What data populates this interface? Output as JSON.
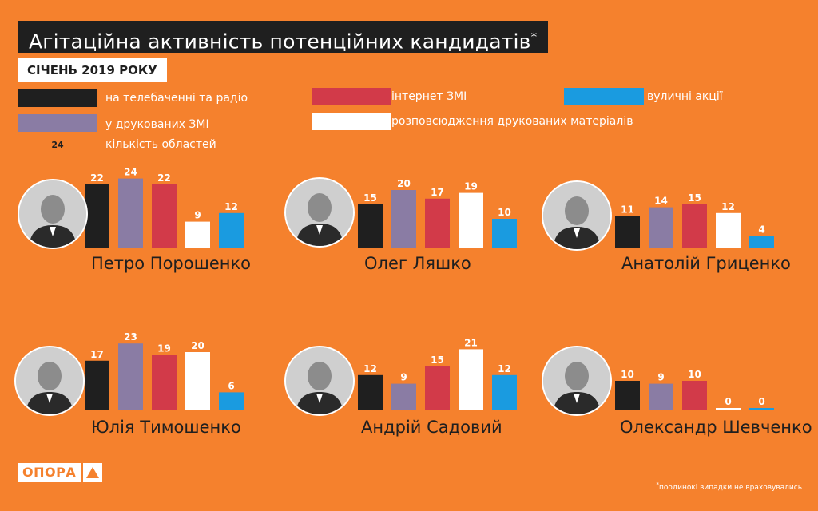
{
  "title": "Агітаційна активність потенційних кандидатів",
  "title_asterisk": "*",
  "subtitle": "СІЧЕНЬ 2019 РОКУ",
  "legend": {
    "tv_radio": {
      "label": "на телебаченні та радіо",
      "color": "#1f1f1f"
    },
    "print": {
      "label": "у друкованих ЗМІ",
      "color": "#8a7ca4"
    },
    "internet": {
      "label": "інтернет ЗМІ",
      "color": "#d23a49"
    },
    "printed_materials": {
      "label": "розповсюдження друкованих матеріалів",
      "color": "#ffffff"
    },
    "street": {
      "label": "вуличні акції",
      "color": "#1a9be0"
    },
    "count_example": "24",
    "count_label": "кількість областей"
  },
  "chart_data": [
    {
      "type": "bar",
      "name": "Петро Порошенко",
      "categories": [
        "на телебаченні та радіо",
        "у друкованих ЗМІ",
        "інтернет ЗМІ",
        "розповсюдження друкованих матеріалів",
        "вуличні акції"
      ],
      "values": [
        22,
        24,
        22,
        9,
        12
      ],
      "ylim": [
        0,
        24
      ]
    },
    {
      "type": "bar",
      "name": "Олег Ляшко",
      "categories": [
        "на телебаченні та радіо",
        "у друкованих ЗМІ",
        "інтернет ЗМІ",
        "розповсюдження друкованих матеріалів",
        "вуличні акції"
      ],
      "values": [
        15,
        20,
        17,
        19,
        10
      ],
      "ylim": [
        0,
        24
      ]
    },
    {
      "type": "bar",
      "name": "Анатолій Гриценко",
      "categories": [
        "на телебаченні та радіо",
        "у друкованих ЗМІ",
        "інтернет ЗМІ",
        "розповсюдження друкованих матеріалів",
        "вуличні акції"
      ],
      "values": [
        11,
        14,
        15,
        12,
        4
      ],
      "ylim": [
        0,
        24
      ]
    },
    {
      "type": "bar",
      "name": "Юлія Тимошенко",
      "categories": [
        "на телебаченні та радіо",
        "у друкованих ЗМІ",
        "інтернет ЗМІ",
        "розповсюдження друкованих матеріалів",
        "вуличні акції"
      ],
      "values": [
        17,
        23,
        19,
        20,
        6
      ],
      "ylim": [
        0,
        24
      ]
    },
    {
      "type": "bar",
      "name": "Андрій Садовий",
      "categories": [
        "на телебаченні та радіо",
        "у друкованих ЗМІ",
        "інтернет ЗМІ",
        "розповсюдження друкованих матеріалів",
        "вуличні акції"
      ],
      "values": [
        12,
        9,
        15,
        21,
        12
      ],
      "ylim": [
        0,
        24
      ]
    },
    {
      "type": "bar",
      "name": "Олександр Шевченко",
      "categories": [
        "на телебаченні та радіо",
        "у друкованих ЗМІ",
        "інтернет ЗМІ",
        "розповсюдження друкованих матеріалів",
        "вуличні акції"
      ],
      "values": [
        10,
        9,
        10,
        0,
        0
      ],
      "ylim": [
        0,
        24
      ]
    }
  ],
  "footnote": "поодинокі випадки не враховувались",
  "footnote_asterisk": "*",
  "logo": "ОПОРА"
}
